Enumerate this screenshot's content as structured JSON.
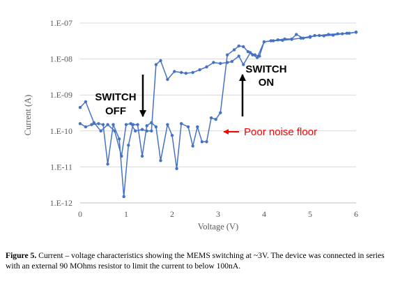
{
  "chart_data": {
    "type": "line",
    "xlabel": "Voltage (V)",
    "ylabel": "Current (A)",
    "xlim": [
      0,
      6
    ],
    "ylim": [
      1e-12,
      1e-07
    ],
    "yscale": "log",
    "x_ticks": [
      "0",
      "1",
      "2",
      "3",
      "4",
      "5",
      "6"
    ],
    "y_ticks": [
      "1.E-12",
      "1.E-11",
      "1.E-10",
      "1.E-09",
      "1.E-08",
      "1.E-07"
    ],
    "grid": "horizontal",
    "color": "#4472c4",
    "series": [
      {
        "points": [
          [
            0.0,
            4.5e-10
          ],
          [
            0.12,
            6.5e-10
          ],
          [
            0.3,
            1.7e-10
          ],
          [
            0.45,
            1e-10
          ],
          [
            0.6,
            1.5e-10
          ],
          [
            0.75,
            1e-10
          ],
          [
            0.9,
            2e-11
          ],
          [
            1.0,
            1.5e-10
          ],
          [
            1.1,
            1.6e-10
          ],
          [
            1.2,
            1e-10
          ],
          [
            1.35,
            1.1e-10
          ],
          [
            1.45,
            1e-10
          ],
          [
            1.55,
            1e-10
          ],
          [
            1.65,
            7e-09
          ],
          [
            1.75,
            9e-09
          ],
          [
            1.9,
            2.7e-09
          ],
          [
            2.05,
            4.5e-09
          ],
          [
            2.2,
            4.2e-09
          ],
          [
            2.3,
            4e-09
          ],
          [
            2.45,
            4.2e-09
          ],
          [
            2.6,
            5e-09
          ],
          [
            2.75,
            6e-09
          ],
          [
            2.9,
            8e-09
          ],
          [
            3.05,
            7.5e-09
          ],
          [
            3.2,
            8e-09
          ],
          [
            3.3,
            8.5e-09
          ],
          [
            3.45,
            1.2e-08
          ],
          [
            3.55,
            7e-09
          ],
          [
            3.7,
            1.5e-08
          ],
          [
            3.8,
            1.3e-08
          ],
          [
            3.9,
            1.2e-08
          ],
          [
            4.0,
            3e-08
          ],
          [
            4.2,
            3.2e-08
          ],
          [
            4.4,
            3.3e-08
          ],
          [
            4.6,
            3.5e-08
          ],
          [
            4.8,
            3.8e-08
          ],
          [
            5.0,
            4.2e-08
          ],
          [
            5.2,
            4.5e-08
          ],
          [
            5.4,
            4.8e-08
          ],
          [
            5.6,
            5e-08
          ],
          [
            5.8,
            5.2e-08
          ],
          [
            6.0,
            5.5e-08
          ]
        ]
      },
      {
        "points": [
          [
            0.0,
            1.6e-10
          ],
          [
            0.12,
            1.3e-10
          ],
          [
            0.25,
            1.5e-10
          ],
          [
            0.4,
            1.6e-10
          ],
          [
            0.5,
            1.5e-10
          ],
          [
            0.6,
            1.2e-11
          ],
          [
            0.72,
            1.5e-10
          ],
          [
            0.85,
            6e-11
          ],
          [
            0.95,
            1.5e-12
          ],
          [
            1.05,
            4e-11
          ],
          [
            1.15,
            1.5e-10
          ],
          [
            1.25,
            1.5e-10
          ],
          [
            1.35,
            2e-11
          ],
          [
            1.45,
            1.4e-10
          ],
          [
            1.55,
            1.7e-10
          ],
          [
            1.65,
            1.3e-10
          ],
          [
            1.75,
            1.5e-11
          ],
          [
            1.9,
            1.5e-10
          ],
          [
            2.0,
            7.5e-11
          ],
          [
            2.1,
            9e-12
          ],
          [
            2.2,
            1.6e-10
          ],
          [
            2.35,
            1.3e-10
          ],
          [
            2.45,
            3.8e-11
          ],
          [
            2.55,
            1.3e-10
          ],
          [
            2.65,
            5e-11
          ],
          [
            2.75,
            5e-11
          ],
          [
            2.85,
            2.3e-10
          ],
          [
            2.95,
            2.1e-10
          ],
          [
            3.05,
            3.2e-10
          ],
          [
            3.2,
            1.3e-08
          ],
          [
            3.35,
            1.8e-08
          ],
          [
            3.45,
            2.3e-08
          ],
          [
            3.55,
            2.2e-08
          ],
          [
            3.65,
            1.6e-08
          ],
          [
            3.75,
            1.3e-08
          ],
          [
            3.85,
            1.1e-08
          ],
          [
            4.0,
            3e-08
          ],
          [
            4.15,
            3.2e-08
          ],
          [
            4.3,
            3.4e-08
          ],
          [
            4.45,
            3.6e-08
          ],
          [
            4.6,
            3.6e-08
          ],
          [
            4.7,
            4.8e-08
          ],
          [
            4.85,
            3.8e-08
          ],
          [
            5.0,
            4e-08
          ],
          [
            5.1,
            4.5e-08
          ],
          [
            5.3,
            4.4e-08
          ],
          [
            5.5,
            4.6e-08
          ],
          [
            5.7,
            5e-08
          ],
          [
            5.85,
            5.2e-08
          ],
          [
            6.0,
            5.6e-08
          ]
        ]
      }
    ],
    "annotations": [
      {
        "lines": [
          "SWITCH",
          "OFF"
        ],
        "arrow": "down"
      },
      {
        "lines": [
          "SWITCH",
          "ON"
        ],
        "arrow": "up"
      },
      {
        "text": "Poor noise floor",
        "arrow": "left",
        "color": "#ff0000"
      }
    ]
  },
  "caption": {
    "label": "Figure 5.",
    "text": " Current – voltage characteristics showing the MEMS switching at ~3V. The device was connected in series with an external 90 MOhms resistor to limit the current to below 100nA."
  }
}
